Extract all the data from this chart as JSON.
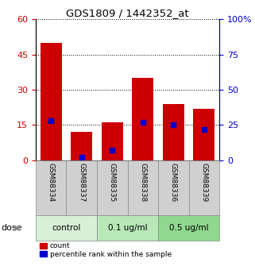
{
  "title": "GDS1809 / 1442352_at",
  "samples": [
    "GSM88334",
    "GSM88337",
    "GSM88335",
    "GSM88338",
    "GSM88336",
    "GSM88339"
  ],
  "counts": [
    50,
    12,
    16,
    35,
    24,
    22
  ],
  "percentile_ranks": [
    28,
    2,
    7,
    27,
    25,
    22
  ],
  "ylim_left": [
    0,
    60
  ],
  "yticks_left": [
    0,
    15,
    30,
    45,
    60
  ],
  "ylim_right": [
    0,
    100
  ],
  "yticks_right": [
    0,
    25,
    50,
    75,
    100
  ],
  "bar_color": "#cc0000",
  "dot_color": "#0000cc",
  "left_tick_color": "#cc0000",
  "right_tick_color": "#0000cc",
  "dose_groups": [
    {
      "label": "control",
      "indices": [
        0,
        1
      ],
      "color": "#d8f0d8"
    },
    {
      "label": "0.1 ug/ml",
      "indices": [
        2,
        3
      ],
      "color": "#b8e8b8"
    },
    {
      "label": "0.5 ug/ml",
      "indices": [
        4,
        5
      ],
      "color": "#90d890"
    }
  ],
  "dose_label": "dose",
  "legend_count_label": "count",
  "legend_pct_label": "percentile rank within the sample",
  "bar_width": 0.7
}
